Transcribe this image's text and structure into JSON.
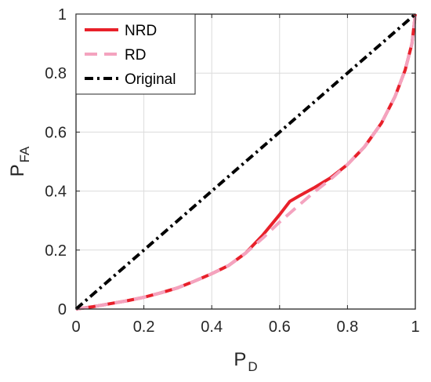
{
  "chart_data": {
    "type": "line",
    "xlabel": {
      "main": "P",
      "sub": "D"
    },
    "ylabel": {
      "main": "P",
      "sub": "FA"
    },
    "xlim": [
      0,
      1
    ],
    "ylim": [
      0,
      1
    ],
    "xticks": [
      0,
      0.2,
      0.4,
      0.6,
      0.8,
      1
    ],
    "yticks": [
      0,
      0.2,
      0.4,
      0.6,
      0.8,
      1
    ],
    "xtick_labels": [
      "0",
      "0.2",
      "0.4",
      "0.6",
      "0.8",
      "1"
    ],
    "ytick_labels": [
      "0",
      "0.2",
      "0.4",
      "0.6",
      "0.8",
      "1"
    ],
    "grid": true,
    "legend_position": "top-left",
    "series": [
      {
        "name": "NRD",
        "color": "#e8202a",
        "style": "solid",
        "x": [
          0,
          0.05,
          0.1,
          0.15,
          0.2,
          0.25,
          0.3,
          0.35,
          0.4,
          0.45,
          0.5,
          0.55,
          0.6,
          0.63,
          0.66,
          0.7,
          0.75,
          0.8,
          0.85,
          0.9,
          0.94,
          0.97,
          0.99,
          1.0
        ],
        "y": [
          0,
          0.008,
          0.018,
          0.028,
          0.04,
          0.055,
          0.072,
          0.095,
          0.12,
          0.148,
          0.19,
          0.25,
          0.32,
          0.365,
          0.385,
          0.41,
          0.445,
          0.49,
          0.55,
          0.63,
          0.72,
          0.81,
          0.9,
          1.0
        ]
      },
      {
        "name": "RD",
        "color": "#f4a3bf",
        "style": "dashed",
        "x": [
          0,
          0.05,
          0.1,
          0.15,
          0.2,
          0.25,
          0.3,
          0.35,
          0.4,
          0.45,
          0.5,
          0.55,
          0.6,
          0.65,
          0.7,
          0.75,
          0.8,
          0.85,
          0.9,
          0.94,
          0.97,
          0.99,
          1.0
        ],
        "y": [
          0,
          0.008,
          0.018,
          0.028,
          0.04,
          0.055,
          0.072,
          0.095,
          0.12,
          0.148,
          0.19,
          0.24,
          0.295,
          0.345,
          0.395,
          0.44,
          0.49,
          0.55,
          0.63,
          0.72,
          0.81,
          0.9,
          1.0
        ]
      },
      {
        "name": "Original",
        "color": "#000000",
        "style": "dashdot",
        "x": [
          0,
          1
        ],
        "y": [
          0,
          1
        ]
      }
    ]
  }
}
